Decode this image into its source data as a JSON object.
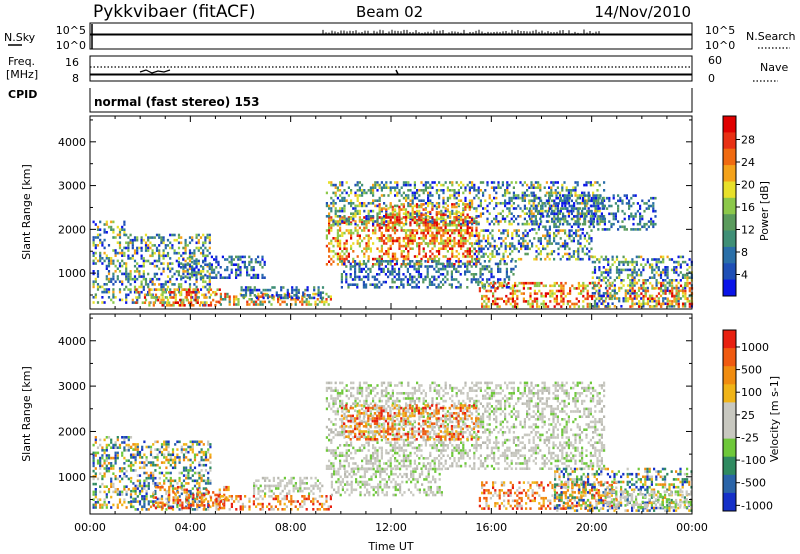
{
  "header": {
    "station": "Pykkvibaer (fitACF)",
    "beam": "Beam 02",
    "date": "14/Nov/2010"
  },
  "top_panels": {
    "nsky_label": "N.Sky",
    "nsky_ticks": [
      "10^5",
      "10^0"
    ],
    "nsearch_label": "N.Search",
    "nsearch_ticks": [
      "10^5",
      "10^0"
    ],
    "freq_label": "Freq.",
    "freq_unit": "[MHz]",
    "freq_ticks": [
      "16",
      "8"
    ],
    "nave_label": "Nave",
    "nave_ticks": [
      "60",
      "0"
    ],
    "cpid_label": "CPID",
    "cpid_text": "normal (fast stereo) 153"
  },
  "chart_data": [
    {
      "type": "heatmap",
      "name": "Power",
      "ylabel": "Slant Range [km]",
      "ylim": [
        180,
        4590
      ],
      "yticks": [
        1000,
        2000,
        3000,
        4000
      ],
      "xlim": [
        0,
        24
      ],
      "colorbar": {
        "label": "Power [dB]",
        "ticks": [
          "4",
          "8",
          "12",
          "16",
          "20",
          "24",
          "28"
        ],
        "colors": [
          "#0a14e8",
          "#1f4fb6",
          "#2a6fa8",
          "#3f8f76",
          "#5a9b5c",
          "#8cc84a",
          "#e8e02a",
          "#f4a21a",
          "#f06a10",
          "#e83014",
          "#e00000"
        ]
      },
      "regions": [
        {
          "t0": 0.1,
          "t1": 1.4,
          "r0": 300,
          "r1": 2200,
          "cls": "mix"
        },
        {
          "t0": 1.4,
          "t1": 4.8,
          "r0": 250,
          "r1": 1900,
          "cls": "mix"
        },
        {
          "t0": 1.8,
          "t1": 5.2,
          "r0": 280,
          "r1": 650,
          "cls": "hot"
        },
        {
          "t0": 5.0,
          "t1": 9.6,
          "r0": 300,
          "r1": 550,
          "cls": "mid"
        },
        {
          "t0": 6.0,
          "t1": 9.3,
          "r0": 450,
          "r1": 700,
          "cls": "cool"
        },
        {
          "t0": 3.5,
          "t1": 7.0,
          "r0": 900,
          "r1": 1400,
          "cls": "cool"
        },
        {
          "t0": 9.4,
          "t1": 15.5,
          "r0": 1200,
          "r1": 2300,
          "cls": "hot"
        },
        {
          "t0": 9.4,
          "t1": 20.5,
          "r0": 2100,
          "r1": 3100,
          "cls": "mix"
        },
        {
          "t0": 11.5,
          "t1": 15.2,
          "r0": 1700,
          "r1": 2600,
          "cls": "hot"
        },
        {
          "t0": 15.3,
          "t1": 20.0,
          "r0": 1300,
          "r1": 2000,
          "cls": "mix"
        },
        {
          "t0": 10.0,
          "t1": 17.0,
          "r0": 700,
          "r1": 1300,
          "cls": "cool"
        },
        {
          "t0": 15.5,
          "t1": 20.8,
          "r0": 250,
          "r1": 800,
          "cls": "hot"
        },
        {
          "t0": 20.0,
          "t1": 24.0,
          "r0": 250,
          "r1": 1400,
          "cls": "mix"
        },
        {
          "t0": 21.5,
          "t1": 24.0,
          "r0": 250,
          "r1": 800,
          "cls": "hot"
        },
        {
          "t0": 17.5,
          "t1": 22.5,
          "r0": 2000,
          "r1": 2800,
          "cls": "cool"
        }
      ]
    },
    {
      "type": "heatmap",
      "name": "Velocity",
      "ylabel": "Slant Range [km]",
      "xlabel": "Time UT",
      "ylim": [
        180,
        4590
      ],
      "yticks": [
        1000,
        2000,
        3000,
        4000
      ],
      "xlim": [
        0,
        24
      ],
      "xticks": [
        "00:00",
        "04:00",
        "08:00",
        "12:00",
        "16:00",
        "20:00",
        "00:00"
      ],
      "colorbar": {
        "label": "Velocity [m s-1]",
        "ticks": [
          "1000",
          "500",
          "100",
          "25",
          "-25",
          "-100",
          "-500",
          "-1000"
        ],
        "colors": [
          "#1530c8",
          "#2a64a8",
          "#2f8a60",
          "#6ec83a",
          "#c8c8c0",
          "#c8c8c0",
          "#f0b418",
          "#f08c10",
          "#f05a10",
          "#e82010"
        ]
      },
      "regions": [
        {
          "t0": 0.1,
          "t1": 1.6,
          "r0": 300,
          "r1": 1900,
          "cls": "mixv"
        },
        {
          "t0": 1.6,
          "t1": 4.8,
          "r0": 300,
          "r1": 1800,
          "cls": "mixv"
        },
        {
          "t0": 2.5,
          "t1": 5.5,
          "r0": 300,
          "r1": 800,
          "cls": "orange"
        },
        {
          "t0": 5.0,
          "t1": 9.6,
          "r0": 300,
          "r1": 600,
          "cls": "orange"
        },
        {
          "t0": 6.5,
          "t1": 9.3,
          "r0": 650,
          "r1": 1000,
          "cls": "grey"
        },
        {
          "t0": 9.4,
          "t1": 20.5,
          "r0": 1200,
          "r1": 3100,
          "cls": "grey"
        },
        {
          "t0": 10.0,
          "t1": 15.5,
          "r0": 1800,
          "r1": 2600,
          "cls": "orange"
        },
        {
          "t0": 9.6,
          "t1": 14.0,
          "r0": 600,
          "r1": 1200,
          "cls": "grey"
        },
        {
          "t0": 15.5,
          "t1": 21.0,
          "r0": 300,
          "r1": 900,
          "cls": "orange"
        },
        {
          "t0": 18.5,
          "t1": 24.0,
          "r0": 250,
          "r1": 1200,
          "cls": "mixv"
        },
        {
          "t0": 20.5,
          "t1": 24.0,
          "r0": 300,
          "r1": 700,
          "cls": "grey"
        }
      ]
    }
  ]
}
